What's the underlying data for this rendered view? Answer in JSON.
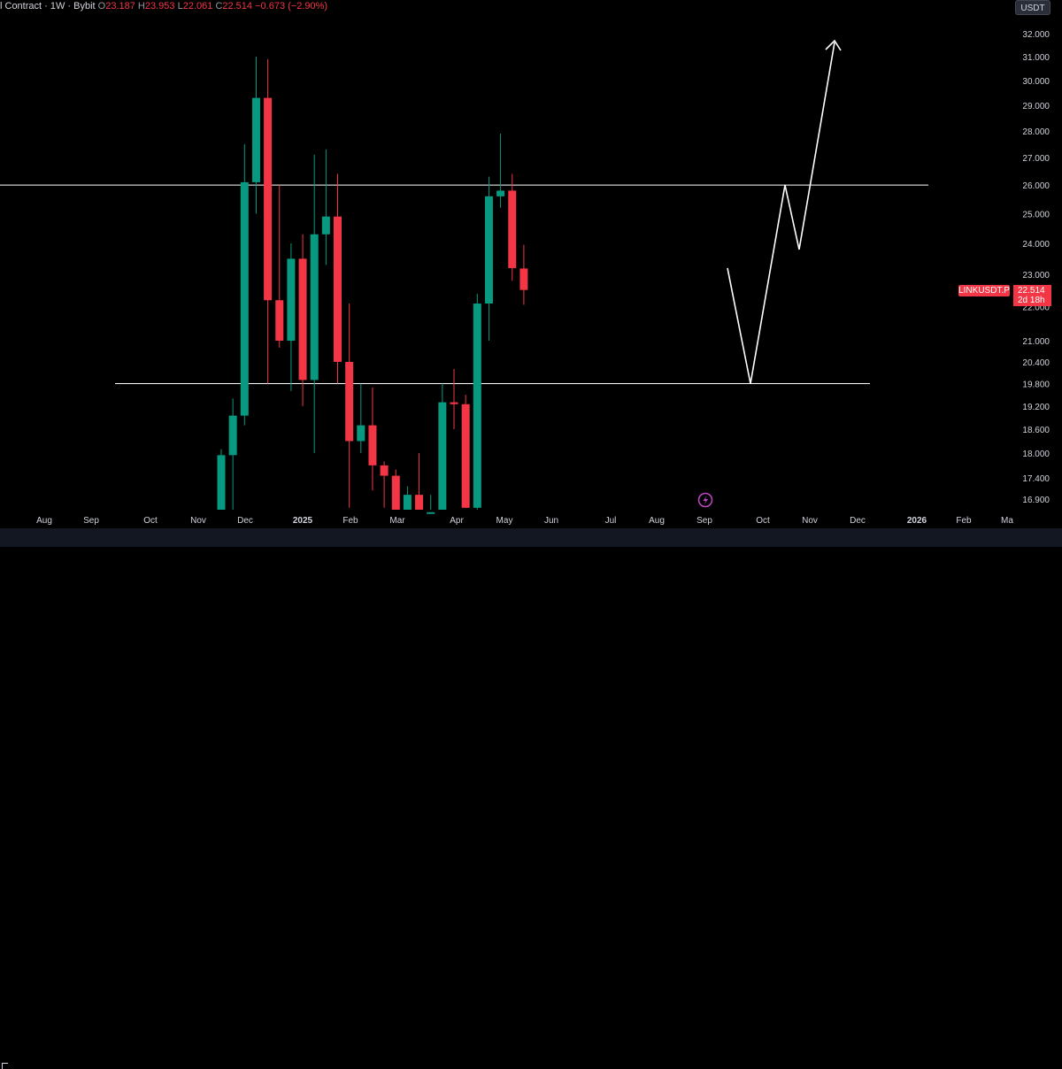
{
  "header": {
    "symbol_text": "l Contract · 1W · Bybit",
    "o_label": "O",
    "o_value": "23.187",
    "h_label": "H",
    "h_value": "23.953",
    "l_label": "L",
    "l_value": "22.061",
    "c_label": "C",
    "c_value": "22.514",
    "change": "−0.673 (−2.90%)"
  },
  "unit_badge": "USDT",
  "price_tag": {
    "symbol": "LINKUSDT.P",
    "value": "22.514",
    "countdown": "2d 18h"
  },
  "colors": {
    "up": "#089981",
    "down": "#f23645",
    "background": "#000000",
    "lines": "#ffffff",
    "axis_text": "#d1d4dc"
  },
  "chart_data": {
    "type": "candlestick",
    "y_axis": {
      "scale": "log",
      "ticks": [
        "32.000",
        "31.000",
        "30.000",
        "29.000",
        "28.000",
        "27.000",
        "26.000",
        "25.000",
        "24.000",
        "23.000",
        "22.000",
        "21.000",
        "20.400",
        "19.800",
        "19.200",
        "18.600",
        "18.000",
        "17.400",
        "16.900"
      ]
    },
    "x_axis": {
      "ticks": [
        "Aug",
        "Sep",
        "Oct",
        "Nov",
        "Dec",
        "2025",
        "Feb",
        "Mar",
        "Apr",
        "May",
        "Jun",
        "Jul",
        "Aug",
        "Sep",
        "Oct",
        "Nov",
        "Dec",
        "2026",
        "Feb",
        "Ma"
      ],
      "bold_ticks": [
        "2025",
        "2026"
      ]
    },
    "candles": [
      {
        "o": 16.45,
        "h": 18.1,
        "l": 16.45,
        "c": 17.95
      },
      {
        "o": 17.95,
        "h": 19.4,
        "l": 16.5,
        "c": 18.95
      },
      {
        "o": 18.95,
        "h": 27.5,
        "l": 18.7,
        "c": 26.1
      },
      {
        "o": 26.1,
        "h": 31.0,
        "l": 25.0,
        "c": 29.3
      },
      {
        "o": 29.3,
        "h": 30.9,
        "l": 19.8,
        "c": 22.2
      },
      {
        "o": 22.2,
        "h": 26.0,
        "l": 20.8,
        "c": 21.0
      },
      {
        "o": 21.0,
        "h": 24.0,
        "l": 19.6,
        "c": 23.5
      },
      {
        "o": 23.5,
        "h": 24.3,
        "l": 19.2,
        "c": 19.9
      },
      {
        "o": 19.9,
        "h": 27.1,
        "l": 18.0,
        "c": 24.3
      },
      {
        "o": 24.3,
        "h": 27.3,
        "l": 23.3,
        "c": 24.9
      },
      {
        "o": 24.9,
        "h": 26.4,
        "l": 19.8,
        "c": 20.4
      },
      {
        "o": 20.4,
        "h": 22.1,
        "l": 16.7,
        "c": 18.3
      },
      {
        "o": 18.3,
        "h": 19.8,
        "l": 18.0,
        "c": 18.7
      },
      {
        "o": 18.7,
        "h": 19.7,
        "l": 17.1,
        "c": 17.7
      },
      {
        "o": 17.7,
        "h": 17.8,
        "l": 16.7,
        "c": 17.45
      },
      {
        "o": 17.45,
        "h": 17.6,
        "l": 16.5,
        "c": 16.5
      },
      {
        "o": 16.5,
        "h": 17.2,
        "l": 16.4,
        "c": 17.0
      },
      {
        "o": 17.0,
        "h": 18.0,
        "l": 16.5,
        "c": 16.6
      },
      {
        "o": 16.6,
        "h": 17.0,
        "l": 16.5,
        "c": 16.6
      },
      {
        "o": 16.6,
        "h": 19.8,
        "l": 16.6,
        "c": 19.3
      },
      {
        "o": 19.3,
        "h": 20.2,
        "l": 18.6,
        "c": 19.25
      },
      {
        "o": 19.25,
        "h": 19.5,
        "l": 16.7,
        "c": 16.7
      },
      {
        "o": 16.7,
        "h": 22.4,
        "l": 16.5,
        "c": 22.1
      },
      {
        "o": 22.1,
        "h": 26.3,
        "l": 21.0,
        "c": 25.6
      },
      {
        "o": 25.6,
        "h": 27.9,
        "l": 25.2,
        "c": 25.8
      },
      {
        "o": 25.8,
        "h": 26.4,
        "l": 22.8,
        "c": 23.2
      },
      {
        "o": 23.187,
        "h": 23.953,
        "l": 22.061,
        "c": 22.514
      }
    ],
    "horizontal_levels": [
      26.0,
      19.8
    ],
    "projection_path": [
      23.2,
      19.8,
      26.0,
      23.8,
      32.0
    ],
    "current_price": 22.514
  }
}
